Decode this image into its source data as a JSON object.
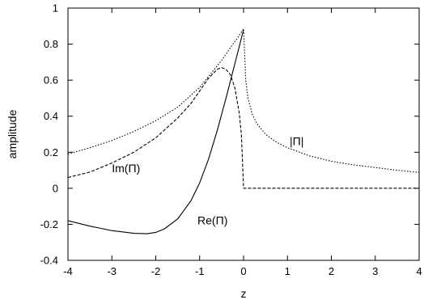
{
  "chart_data": {
    "type": "line",
    "title": "",
    "xlabel": "z",
    "ylabel": "amplitude",
    "xlim": [
      -4,
      4
    ],
    "ylim": [
      -0.4,
      1
    ],
    "xticks": [
      -4,
      -3,
      -2,
      -1,
      0,
      1,
      2,
      3,
      4
    ],
    "xtick_labels": [
      "-4",
      "-3",
      "-2",
      "-1",
      "0",
      "1",
      "2",
      "3",
      "4"
    ],
    "yticks": [
      -0.4,
      -0.2,
      0,
      0.2,
      0.4,
      0.6,
      0.8,
      1
    ],
    "ytick_labels": [
      "-0.4",
      "-0.2",
      "0",
      "0.2",
      "0.4",
      "0.6",
      "0.8",
      "1"
    ],
    "grid": false,
    "legend": "none",
    "series": [
      {
        "name": "Re(Π)",
        "style": "solid",
        "x": [
          -4,
          -3.5,
          -3,
          -2.5,
          -2.2,
          -2,
          -1.8,
          -1.5,
          -1.2,
          -1,
          -0.8,
          -0.6,
          -0.4,
          -0.2,
          0
        ],
        "y": [
          -0.18,
          -0.21,
          -0.235,
          -0.25,
          -0.252,
          -0.245,
          -0.225,
          -0.17,
          -0.07,
          0.03,
          0.16,
          0.32,
          0.5,
          0.69,
          0.88
        ]
      },
      {
        "name": "Im(Π)",
        "style": "dashed",
        "x": [
          -4,
          -3.5,
          -3,
          -2.5,
          -2,
          -1.5,
          -1.2,
          -1,
          -0.8,
          -0.6,
          -0.5,
          -0.4,
          -0.3,
          -0.2,
          -0.1,
          -0.05,
          0,
          0.001,
          4
        ],
        "y": [
          0.06,
          0.09,
          0.14,
          0.2,
          0.28,
          0.39,
          0.47,
          0.54,
          0.61,
          0.66,
          0.67,
          0.66,
          0.63,
          0.56,
          0.42,
          0.3,
          0.0,
          0.0,
          0.0
        ]
      },
      {
        "name": "|Π|",
        "style": "dotted",
        "x": [
          -4,
          -3.5,
          -3,
          -2.5,
          -2,
          -1.5,
          -1,
          -0.7,
          -0.5,
          -0.3,
          -0.15,
          0,
          0.05,
          0.1,
          0.2,
          0.3,
          0.5,
          0.75,
          1,
          1.5,
          2,
          2.5,
          3,
          3.5,
          4
        ],
        "y": [
          0.19,
          0.225,
          0.265,
          0.315,
          0.375,
          0.45,
          0.56,
          0.65,
          0.71,
          0.78,
          0.83,
          0.885,
          0.6,
          0.5,
          0.41,
          0.36,
          0.3,
          0.255,
          0.225,
          0.18,
          0.15,
          0.13,
          0.115,
          0.1,
          0.088
        ]
      }
    ],
    "annotations": [
      {
        "text": "|Π|",
        "x": 1.05,
        "y": 0.24
      },
      {
        "text": "Im(Π)",
        "x": -3.0,
        "y": 0.09
      },
      {
        "text": "Re(Π)",
        "x": -1.05,
        "y": -0.2
      }
    ]
  }
}
